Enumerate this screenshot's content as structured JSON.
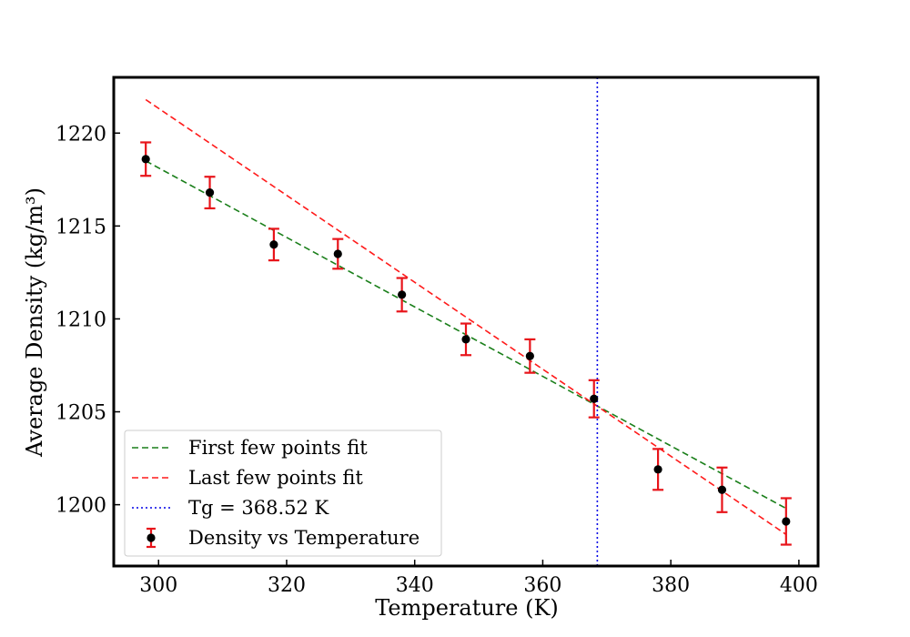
{
  "chart_data": {
    "type": "scatter",
    "title": "",
    "xlabel": "Temperature (K)",
    "ylabel": "Average Density (kg/m³)",
    "xlim": [
      293,
      403
    ],
    "ylim": [
      1196.7,
      1223.0
    ],
    "xticks": [
      300,
      320,
      340,
      360,
      380,
      400
    ],
    "yticks": [
      1200,
      1205,
      1210,
      1215,
      1220
    ],
    "grid": false,
    "legend_position": "lower-left",
    "series": [
      {
        "name": "Density vs Temperature",
        "kind": "errorbar",
        "marker_color": "#000000",
        "errorbar_color": "#e8141a",
        "x": [
          298,
          308,
          318,
          328,
          338,
          348,
          358,
          368,
          378,
          388,
          398
        ],
        "y": [
          1218.6,
          1216.8,
          1214.0,
          1213.5,
          1211.3,
          1208.9,
          1208.0,
          1205.7,
          1201.9,
          1200.8,
          1199.1
        ],
        "yerr": [
          0.9,
          0.85,
          0.85,
          0.8,
          0.9,
          0.85,
          0.9,
          1.0,
          1.1,
          1.2,
          1.25
        ]
      },
      {
        "name": "First few points fit",
        "kind": "line",
        "style": "dashed",
        "color": "#1a7f1a",
        "x": [
          298,
          398
        ],
        "y": [
          1218.5,
          1199.8
        ]
      },
      {
        "name": "Last few points fit",
        "kind": "line",
        "style": "dashed",
        "color": "#ff1a1a",
        "x": [
          298,
          398
        ],
        "y": [
          1221.8,
          1198.4
        ]
      },
      {
        "name": "Tg = 368.52 K",
        "kind": "vline",
        "style": "dotted",
        "color": "#0000e6",
        "x": 368.52
      }
    ],
    "legend_order": [
      "First few points fit",
      "Last few points fit",
      "Tg = 368.52 K",
      "Density vs Temperature"
    ]
  }
}
